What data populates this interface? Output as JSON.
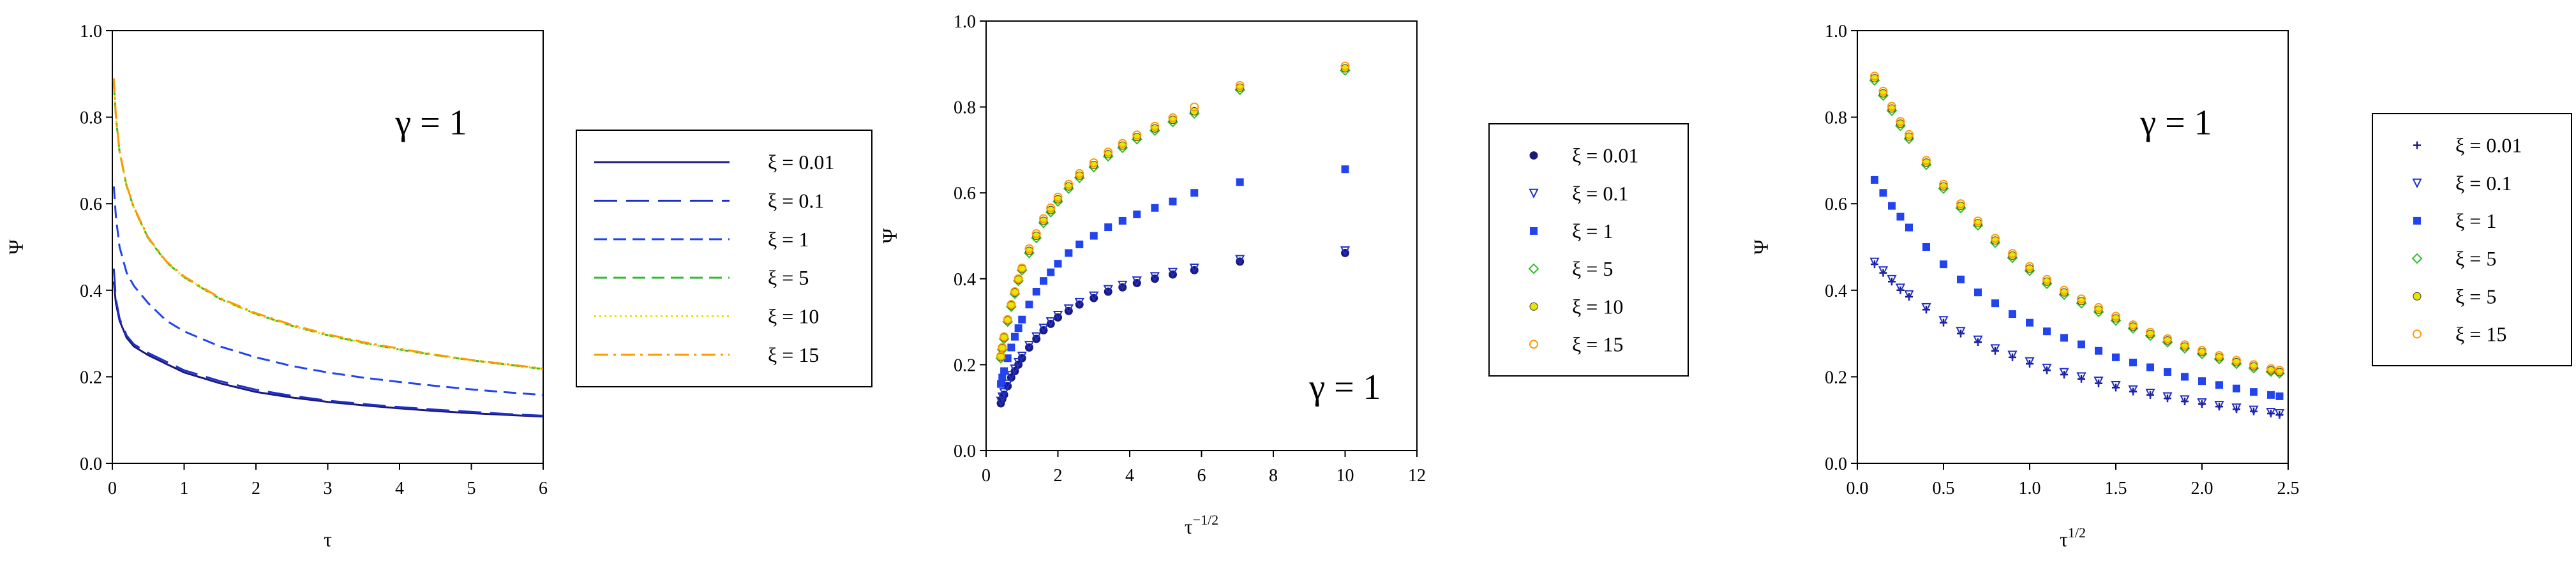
{
  "colors": {
    "navy": "#1a1a7a",
    "deep_blue": "#1f2fcc",
    "blue": "#2244ee",
    "green": "#33bb33",
    "yellow": "#e6e600",
    "orange": "#ff9900"
  },
  "chart_data": [
    {
      "type": "line",
      "annotation": "γ = 1",
      "xlabel": "τ",
      "ylabel": "Ψ",
      "xlim": [
        0,
        6
      ],
      "ylim": [
        0,
        1.0
      ],
      "xticks": [
        "0",
        "1",
        "2",
        "3",
        "4",
        "5",
        "6"
      ],
      "yticks": [
        "0.0",
        "0.2",
        "0.4",
        "0.6",
        "0.8",
        "1.0"
      ],
      "grid": false,
      "legend_position": "right",
      "series": [
        {
          "name": "ξ = 0.01",
          "color": "#1a1a7a",
          "dash": "solid",
          "x": [
            0.02,
            0.05,
            0.1,
            0.2,
            0.3,
            0.5,
            0.75,
            1,
            1.5,
            2,
            2.5,
            3,
            3.5,
            4,
            4.5,
            5,
            5.5,
            6
          ],
          "y": [
            0.42,
            0.37,
            0.33,
            0.29,
            0.27,
            0.25,
            0.23,
            0.21,
            0.185,
            0.165,
            0.152,
            0.142,
            0.134,
            0.127,
            0.121,
            0.116,
            0.112,
            0.108
          ]
        },
        {
          "name": "ξ = 0.1",
          "color": "#1f2fcc",
          "dash": "long",
          "x": [
            0.02,
            0.05,
            0.1,
            0.2,
            0.3,
            0.5,
            0.75,
            1,
            1.5,
            2,
            2.5,
            3,
            3.5,
            4,
            4.5,
            5,
            5.5,
            6
          ],
          "y": [
            0.45,
            0.38,
            0.335,
            0.295,
            0.275,
            0.255,
            0.235,
            0.215,
            0.19,
            0.17,
            0.156,
            0.145,
            0.137,
            0.13,
            0.124,
            0.119,
            0.114,
            0.11
          ]
        },
        {
          "name": "ξ = 1",
          "color": "#2244ee",
          "dash": "medium",
          "x": [
            0.02,
            0.05,
            0.1,
            0.2,
            0.3,
            0.5,
            0.75,
            1,
            1.5,
            2,
            2.5,
            3,
            3.5,
            4,
            4.5,
            5,
            5.5,
            6
          ],
          "y": [
            0.64,
            0.57,
            0.5,
            0.44,
            0.41,
            0.37,
            0.33,
            0.305,
            0.27,
            0.245,
            0.225,
            0.21,
            0.198,
            0.188,
            0.179,
            0.171,
            0.164,
            0.158
          ]
        },
        {
          "name": "ξ = 5",
          "color": "#33bb33",
          "dash": "medium",
          "x": [
            0.02,
            0.05,
            0.1,
            0.2,
            0.3,
            0.5,
            0.75,
            1,
            1.5,
            2,
            2.5,
            3,
            3.5,
            4,
            4.5,
            5,
            5.5,
            6
          ],
          "y": [
            0.88,
            0.8,
            0.72,
            0.64,
            0.59,
            0.52,
            0.465,
            0.43,
            0.38,
            0.345,
            0.318,
            0.296,
            0.278,
            0.263,
            0.25,
            0.238,
            0.228,
            0.218
          ]
        },
        {
          "name": "ξ = 10",
          "color": "#e6e600",
          "dash": "dotted",
          "x": [
            0.02,
            0.05,
            0.1,
            0.2,
            0.3,
            0.5,
            0.75,
            1,
            1.5,
            2,
            2.5,
            3,
            3.5,
            4,
            4.5,
            5,
            5.5,
            6
          ],
          "y": [
            0.885,
            0.8,
            0.72,
            0.64,
            0.59,
            0.52,
            0.465,
            0.43,
            0.38,
            0.345,
            0.318,
            0.296,
            0.278,
            0.263,
            0.25,
            0.238,
            0.228,
            0.218
          ]
        },
        {
          "name": "ξ = 15",
          "color": "#ff9900",
          "dash": "dashdot",
          "x": [
            0.02,
            0.05,
            0.1,
            0.2,
            0.3,
            0.5,
            0.75,
            1,
            1.5,
            2,
            2.5,
            3,
            3.5,
            4,
            4.5,
            5,
            5.5,
            6
          ],
          "y": [
            0.89,
            0.805,
            0.722,
            0.642,
            0.592,
            0.522,
            0.467,
            0.432,
            0.382,
            0.347,
            0.32,
            0.298,
            0.28,
            0.265,
            0.251,
            0.239,
            0.229,
            0.219
          ]
        }
      ]
    },
    {
      "type": "scatter",
      "annotation": "γ = 1",
      "xlabel": "τ",
      "xlabel_sup": "−1/2",
      "ylabel": "Ψ",
      "xlim": [
        0,
        12
      ],
      "ylim": [
        0,
        1.0
      ],
      "xticks": [
        "0",
        "2",
        "4",
        "6",
        "8",
        "10",
        "12"
      ],
      "yticks": [
        "0.0",
        "0.2",
        "0.4",
        "0.6",
        "0.8",
        "1.0"
      ],
      "grid": false,
      "legend_position": "right",
      "series": [
        {
          "name": "ξ = 0.01",
          "color": "#1a1a7a",
          "marker": "circle",
          "x": [
            0.41,
            0.45,
            0.5,
            0.6,
            0.7,
            0.8,
            0.9,
            1.0,
            1.2,
            1.4,
            1.6,
            1.8,
            2.0,
            2.3,
            2.6,
            3.0,
            3.4,
            3.8,
            4.2,
            4.7,
            5.2,
            5.8,
            7.07,
            10.0
          ],
          "y": [
            0.11,
            0.12,
            0.13,
            0.15,
            0.17,
            0.185,
            0.2,
            0.215,
            0.24,
            0.26,
            0.28,
            0.295,
            0.31,
            0.325,
            0.34,
            0.355,
            0.37,
            0.38,
            0.39,
            0.4,
            0.41,
            0.42,
            0.44,
            0.46
          ]
        },
        {
          "name": "ξ = 0.1",
          "color": "#1f2fcc",
          "marker": "triangle-down",
          "x": [
            0.41,
            0.45,
            0.5,
            0.6,
            0.7,
            0.8,
            0.9,
            1.0,
            1.2,
            1.4,
            1.6,
            1.8,
            2.0,
            2.3,
            2.6,
            3.0,
            3.4,
            3.8,
            4.2,
            4.7,
            5.2,
            5.8,
            7.07,
            10.0
          ],
          "y": [
            0.115,
            0.125,
            0.135,
            0.155,
            0.175,
            0.19,
            0.205,
            0.22,
            0.245,
            0.265,
            0.285,
            0.3,
            0.315,
            0.33,
            0.345,
            0.36,
            0.375,
            0.385,
            0.395,
            0.405,
            0.415,
            0.425,
            0.445,
            0.465
          ]
        },
        {
          "name": "ξ = 1",
          "color": "#2244ee",
          "marker": "square",
          "x": [
            0.41,
            0.45,
            0.5,
            0.6,
            0.7,
            0.8,
            0.9,
            1.0,
            1.2,
            1.4,
            1.6,
            1.8,
            2.0,
            2.3,
            2.6,
            3.0,
            3.4,
            3.8,
            4.2,
            4.7,
            5.2,
            5.8,
            7.07,
            10.0
          ],
          "y": [
            0.155,
            0.17,
            0.185,
            0.215,
            0.24,
            0.265,
            0.285,
            0.305,
            0.34,
            0.37,
            0.395,
            0.415,
            0.435,
            0.46,
            0.48,
            0.5,
            0.52,
            0.535,
            0.55,
            0.565,
            0.58,
            0.6,
            0.625,
            0.655
          ]
        },
        {
          "name": "ξ = 5",
          "color": "#33bb33",
          "marker": "diamond",
          "x": [
            0.41,
            0.45,
            0.5,
            0.6,
            0.7,
            0.8,
            0.9,
            1.0,
            1.2,
            1.4,
            1.6,
            1.8,
            2.0,
            2.3,
            2.6,
            3.0,
            3.4,
            3.8,
            4.2,
            4.7,
            5.2,
            5.8,
            7.07,
            10.0
          ],
          "y": [
            0.215,
            0.235,
            0.26,
            0.3,
            0.335,
            0.365,
            0.395,
            0.42,
            0.46,
            0.495,
            0.53,
            0.555,
            0.58,
            0.61,
            0.635,
            0.66,
            0.685,
            0.705,
            0.725,
            0.745,
            0.765,
            0.785,
            0.84,
            0.885
          ]
        },
        {
          "name": "ξ = 10",
          "color": "#e6e600",
          "marker": "dot",
          "x": [
            0.41,
            0.45,
            0.5,
            0.6,
            0.7,
            0.8,
            0.9,
            1.0,
            1.2,
            1.4,
            1.6,
            1.8,
            2.0,
            2.3,
            2.6,
            3.0,
            3.4,
            3.8,
            4.2,
            4.7,
            5.2,
            5.8,
            7.07,
            10.0
          ],
          "y": [
            0.218,
            0.238,
            0.263,
            0.303,
            0.338,
            0.368,
            0.398,
            0.423,
            0.465,
            0.5,
            0.535,
            0.56,
            0.585,
            0.615,
            0.64,
            0.665,
            0.69,
            0.71,
            0.73,
            0.75,
            0.77,
            0.79,
            0.845,
            0.89
          ]
        },
        {
          "name": "ξ = 15",
          "color": "#ff9900",
          "marker": "circle-open",
          "x": [
            0.41,
            0.45,
            0.5,
            0.6,
            0.7,
            0.8,
            0.9,
            1.0,
            1.2,
            1.4,
            1.6,
            1.8,
            2.0,
            2.3,
            2.6,
            3.0,
            3.4,
            3.8,
            4.2,
            4.7,
            5.2,
            5.8,
            7.07,
            10.0
          ],
          "y": [
            0.22,
            0.24,
            0.265,
            0.305,
            0.34,
            0.37,
            0.4,
            0.425,
            0.47,
            0.505,
            0.54,
            0.565,
            0.59,
            0.62,
            0.645,
            0.67,
            0.695,
            0.715,
            0.735,
            0.755,
            0.775,
            0.8,
            0.85,
            0.895
          ]
        }
      ]
    },
    {
      "type": "scatter",
      "annotation": "γ = 1",
      "xlabel": "τ",
      "xlabel_sup": "1/2",
      "ylabel": "Ψ",
      "xlim": [
        0,
        2.5
      ],
      "ylim": [
        0,
        1.0
      ],
      "xticks": [
        "0.0",
        "0.5",
        "1.0",
        "1.5",
        "2.0",
        "2.5"
      ],
      "yticks": [
        "0.0",
        "0.2",
        "0.4",
        "0.6",
        "0.8",
        "1.0"
      ],
      "grid": false,
      "legend_position": "right",
      "series": [
        {
          "name": "ξ = 0.01",
          "color": "#1a1a7a",
          "marker": "plus",
          "x": [
            0.1,
            0.15,
            0.2,
            0.25,
            0.3,
            0.4,
            0.5,
            0.6,
            0.7,
            0.8,
            0.9,
            1.0,
            1.1,
            1.2,
            1.3,
            1.4,
            1.5,
            1.6,
            1.7,
            1.8,
            1.9,
            2.0,
            2.1,
            2.2,
            2.3,
            2.4,
            2.45
          ],
          "y": [
            0.46,
            0.44,
            0.42,
            0.4,
            0.385,
            0.355,
            0.325,
            0.3,
            0.28,
            0.26,
            0.245,
            0.23,
            0.215,
            0.205,
            0.195,
            0.185,
            0.175,
            0.166,
            0.158,
            0.15,
            0.143,
            0.137,
            0.131,
            0.125,
            0.12,
            0.115,
            0.112
          ]
        },
        {
          "name": "ξ = 0.1",
          "color": "#1f2fcc",
          "marker": "triangle-down",
          "x": [
            0.1,
            0.15,
            0.2,
            0.25,
            0.3,
            0.4,
            0.5,
            0.6,
            0.7,
            0.8,
            0.9,
            1.0,
            1.1,
            1.2,
            1.3,
            1.4,
            1.5,
            1.6,
            1.7,
            1.8,
            1.9,
            2.0,
            2.1,
            2.2,
            2.3,
            2.4,
            2.45
          ],
          "y": [
            0.465,
            0.445,
            0.425,
            0.405,
            0.39,
            0.36,
            0.33,
            0.305,
            0.285,
            0.265,
            0.25,
            0.235,
            0.22,
            0.21,
            0.2,
            0.19,
            0.18,
            0.17,
            0.162,
            0.154,
            0.147,
            0.14,
            0.134,
            0.128,
            0.123,
            0.118,
            0.115
          ]
        },
        {
          "name": "ξ = 1",
          "color": "#2244ee",
          "marker": "square",
          "x": [
            0.1,
            0.15,
            0.2,
            0.25,
            0.3,
            0.4,
            0.5,
            0.6,
            0.7,
            0.8,
            0.9,
            1.0,
            1.1,
            1.2,
            1.3,
            1.4,
            1.5,
            1.6,
            1.7,
            1.8,
            1.9,
            2.0,
            2.1,
            2.2,
            2.3,
            2.4,
            2.45
          ],
          "y": [
            0.655,
            0.625,
            0.595,
            0.57,
            0.545,
            0.5,
            0.46,
            0.425,
            0.395,
            0.37,
            0.345,
            0.325,
            0.305,
            0.29,
            0.275,
            0.26,
            0.245,
            0.233,
            0.222,
            0.211,
            0.2,
            0.19,
            0.181,
            0.173,
            0.165,
            0.158,
            0.155
          ]
        },
        {
          "name": "ξ = 5",
          "color": "#33bb33",
          "marker": "diamond",
          "x": [
            0.1,
            0.15,
            0.2,
            0.25,
            0.3,
            0.4,
            0.5,
            0.6,
            0.7,
            0.8,
            0.9,
            1.0,
            1.1,
            1.2,
            1.3,
            1.4,
            1.5,
            1.6,
            1.7,
            1.8,
            1.9,
            2.0,
            2.1,
            2.2,
            2.3,
            2.4,
            2.45
          ],
          "y": [
            0.885,
            0.85,
            0.815,
            0.78,
            0.75,
            0.69,
            0.635,
            0.59,
            0.55,
            0.51,
            0.475,
            0.445,
            0.415,
            0.39,
            0.37,
            0.35,
            0.33,
            0.312,
            0.295,
            0.28,
            0.266,
            0.253,
            0.241,
            0.23,
            0.22,
            0.212,
            0.208
          ]
        },
        {
          "name": "ξ = 5",
          "color": "#e6e600",
          "marker": "dot",
          "x": [
            0.1,
            0.15,
            0.2,
            0.25,
            0.3,
            0.4,
            0.5,
            0.6,
            0.7,
            0.8,
            0.9,
            1.0,
            1.1,
            1.2,
            1.3,
            1.4,
            1.5,
            1.6,
            1.7,
            1.8,
            1.9,
            2.0,
            2.1,
            2.2,
            2.3,
            2.4,
            2.45
          ],
          "y": [
            0.89,
            0.855,
            0.82,
            0.785,
            0.755,
            0.695,
            0.64,
            0.595,
            0.555,
            0.515,
            0.48,
            0.45,
            0.42,
            0.395,
            0.375,
            0.355,
            0.335,
            0.316,
            0.299,
            0.284,
            0.27,
            0.257,
            0.245,
            0.234,
            0.224,
            0.215,
            0.211
          ]
        },
        {
          "name": "ξ = 15",
          "color": "#ff9900",
          "marker": "circle-open",
          "x": [
            0.1,
            0.15,
            0.2,
            0.25,
            0.3,
            0.4,
            0.5,
            0.6,
            0.7,
            0.8,
            0.9,
            1.0,
            1.1,
            1.2,
            1.3,
            1.4,
            1.5,
            1.6,
            1.7,
            1.8,
            1.9,
            2.0,
            2.1,
            2.2,
            2.3,
            2.4,
            2.45
          ],
          "y": [
            0.895,
            0.86,
            0.825,
            0.79,
            0.76,
            0.7,
            0.645,
            0.6,
            0.56,
            0.52,
            0.485,
            0.455,
            0.425,
            0.4,
            0.38,
            0.36,
            0.34,
            0.32,
            0.303,
            0.288,
            0.274,
            0.261,
            0.249,
            0.238,
            0.228,
            0.219,
            0.215
          ]
        }
      ]
    }
  ]
}
